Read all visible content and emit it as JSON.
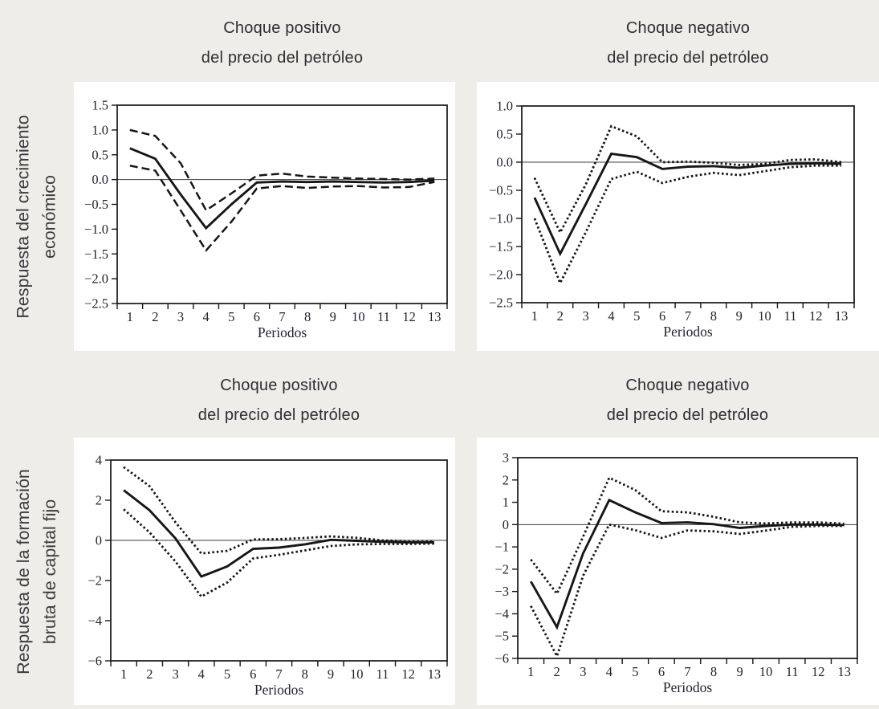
{
  "page": {
    "background_color": "#eeede9",
    "panel_color": "#ffffff",
    "line_color": "#161616",
    "title_text_color": "#2e2e33",
    "axis_text_color": "#20232c"
  },
  "row_labels": [
    {
      "lines": [
        "Respuesta del crecimiento",
        "económico"
      ]
    },
    {
      "lines": [
        "Respuesta de la formación",
        "bruta de capital fijo"
      ]
    }
  ],
  "chart_data": [
    {
      "type": "line",
      "position": "top-left",
      "title_lines": [
        "Choque positivo",
        "del precio del petróleo"
      ],
      "xlabel": "Periodos",
      "x": [
        1,
        2,
        3,
        4,
        5,
        6,
        7,
        8,
        9,
        10,
        11,
        12,
        13
      ],
      "xtick_labels": [
        "1",
        "2",
        "3",
        "4",
        "5",
        "6",
        "7",
        "8",
        "9",
        "10",
        "11",
        "12",
        "13"
      ],
      "xlim": [
        0.5,
        13.5
      ],
      "ylim": [
        -2.5,
        1.5
      ],
      "ytick_values": [
        1.5,
        1.0,
        0.5,
        0.0,
        -0.5,
        -1.0,
        -1.5,
        -2.0,
        -2.5
      ],
      "ytick_labels": [
        "1.5",
        "1.0",
        "0.5",
        "0.0",
        "−0.5",
        "−1.0",
        "−1.5",
        "−2.0",
        "−2.5"
      ],
      "grid": false,
      "zero_line": true,
      "series": [
        {
          "name": "respuesta-central",
          "style": "solid",
          "values": [
            0.63,
            0.42,
            -0.3,
            -0.98,
            -0.5,
            -0.06,
            -0.04,
            -0.05,
            -0.04,
            -0.05,
            -0.06,
            -0.05,
            -0.02
          ]
        },
        {
          "name": "banda-superior",
          "style": "dashed",
          "values": [
            1.0,
            0.88,
            0.33,
            -0.62,
            -0.28,
            0.08,
            0.12,
            0.06,
            0.04,
            0.02,
            0.01,
            0.0,
            0.02
          ]
        },
        {
          "name": "banda-inferior",
          "style": "dashed",
          "values": [
            0.28,
            0.18,
            -0.62,
            -1.43,
            -0.85,
            -0.18,
            -0.13,
            -0.17,
            -0.14,
            -0.13,
            -0.16,
            -0.15,
            -0.05
          ]
        }
      ]
    },
    {
      "type": "line",
      "position": "top-right",
      "title_lines": [
        "Choque negativo",
        "del precio del petróleo"
      ],
      "xlabel": "Periodos",
      "x": [
        1,
        2,
        3,
        4,
        5,
        6,
        7,
        8,
        9,
        10,
        11,
        12,
        13
      ],
      "xtick_labels": [
        "1",
        "2",
        "3",
        "4",
        "5",
        "6",
        "7",
        "8",
        "9",
        "10",
        "11",
        "12",
        "13"
      ],
      "xlim": [
        0.5,
        13.5
      ],
      "ylim": [
        -2.5,
        1.0
      ],
      "ytick_values": [
        1.0,
        0.5,
        0.0,
        -0.5,
        -1.0,
        -1.5,
        -2.0,
        -2.5
      ],
      "ytick_labels": [
        "1.0",
        "0.5",
        "0.0",
        "−0.5",
        "−1.0",
        "−1.5",
        "−2.0",
        "−2.5"
      ],
      "grid": false,
      "zero_line": true,
      "series": [
        {
          "name": "respuesta-central",
          "style": "solid",
          "values": [
            -0.63,
            -1.63,
            -0.75,
            0.15,
            0.09,
            -0.12,
            -0.08,
            -0.07,
            -0.1,
            -0.06,
            -0.03,
            -0.02,
            -0.03
          ]
        },
        {
          "name": "banda-superior",
          "style": "dotted",
          "values": [
            -0.28,
            -1.25,
            -0.4,
            0.64,
            0.46,
            0.0,
            0.01,
            -0.01,
            -0.05,
            -0.03,
            0.04,
            0.05,
            0.0
          ]
        },
        {
          "name": "banda-inferior",
          "style": "dotted",
          "values": [
            -1.0,
            -2.15,
            -1.25,
            -0.3,
            -0.17,
            -0.37,
            -0.26,
            -0.19,
            -0.23,
            -0.16,
            -0.09,
            -0.06,
            -0.06
          ]
        }
      ]
    },
    {
      "type": "line",
      "position": "bottom-left",
      "title_lines": [
        "Choque positivo",
        "del precio del petróleo"
      ],
      "xlabel": "Periodos",
      "x": [
        1,
        2,
        3,
        4,
        5,
        6,
        7,
        8,
        9,
        10,
        11,
        12,
        13
      ],
      "xtick_labels": [
        "1",
        "2",
        "3",
        "4",
        "5",
        "6",
        "7",
        "8",
        "9",
        "10",
        "11",
        "12",
        "13"
      ],
      "xlim": [
        0.5,
        13.5
      ],
      "ylim": [
        -6,
        4
      ],
      "ytick_values": [
        4,
        2,
        0,
        -2,
        -4,
        -6
      ],
      "ytick_labels": [
        "4",
        "2",
        "0",
        "−2",
        "−4",
        "−6"
      ],
      "grid": false,
      "zero_line": true,
      "series": [
        {
          "name": "respuesta-central",
          "style": "solid",
          "values": [
            2.5,
            1.5,
            0.1,
            -1.8,
            -1.3,
            -0.42,
            -0.36,
            -0.2,
            0.03,
            -0.02,
            -0.07,
            -0.1,
            -0.1
          ]
        },
        {
          "name": "banda-superior",
          "style": "dotted",
          "values": [
            3.65,
            2.7,
            0.9,
            -0.65,
            -0.52,
            0.05,
            0.06,
            0.12,
            0.2,
            0.13,
            0.0,
            -0.04,
            -0.05
          ]
        },
        {
          "name": "banda-inferior",
          "style": "dotted",
          "values": [
            1.55,
            0.4,
            -1.05,
            -2.8,
            -2.1,
            -0.9,
            -0.72,
            -0.5,
            -0.28,
            -0.2,
            -0.18,
            -0.18,
            -0.16
          ]
        }
      ]
    },
    {
      "type": "line",
      "position": "bottom-right",
      "title_lines": [
        "Choque negativo",
        "del precio del petróleo"
      ],
      "xlabel": "Periodos",
      "x": [
        1,
        2,
        3,
        4,
        5,
        6,
        7,
        8,
        9,
        10,
        11,
        12,
        13
      ],
      "xtick_labels": [
        "1",
        "2",
        "3",
        "4",
        "5",
        "6",
        "7",
        "8",
        "9",
        "10",
        "11",
        "12",
        "13"
      ],
      "xlim": [
        0.5,
        13.5
      ],
      "ylim": [
        -6,
        3
      ],
      "ytick_values": [
        3,
        2,
        1,
        0,
        -1,
        -2,
        -3,
        -4,
        -5,
        -6
      ],
      "ytick_labels": [
        "3",
        "2",
        "1",
        "0",
        "−1",
        "−2",
        "−3",
        "−4",
        "−5",
        "−6"
      ],
      "grid": false,
      "zero_line": true,
      "series": [
        {
          "name": "respuesta-central",
          "style": "solid",
          "values": [
            -2.55,
            -4.6,
            -1.3,
            1.1,
            0.55,
            0.07,
            0.1,
            0.02,
            -0.15,
            -0.06,
            0.0,
            0.0,
            -0.02
          ]
        },
        {
          "name": "banda-superior",
          "style": "dotted",
          "values": [
            -1.57,
            -3.1,
            -0.55,
            2.1,
            1.55,
            0.6,
            0.55,
            0.35,
            0.1,
            0.05,
            0.1,
            0.1,
            0.04
          ]
        },
        {
          "name": "banda-inferior",
          "style": "dotted",
          "values": [
            -3.65,
            -5.9,
            -2.3,
            0.0,
            -0.25,
            -0.6,
            -0.26,
            -0.3,
            -0.42,
            -0.27,
            -0.1,
            -0.06,
            -0.06
          ]
        }
      ]
    }
  ]
}
